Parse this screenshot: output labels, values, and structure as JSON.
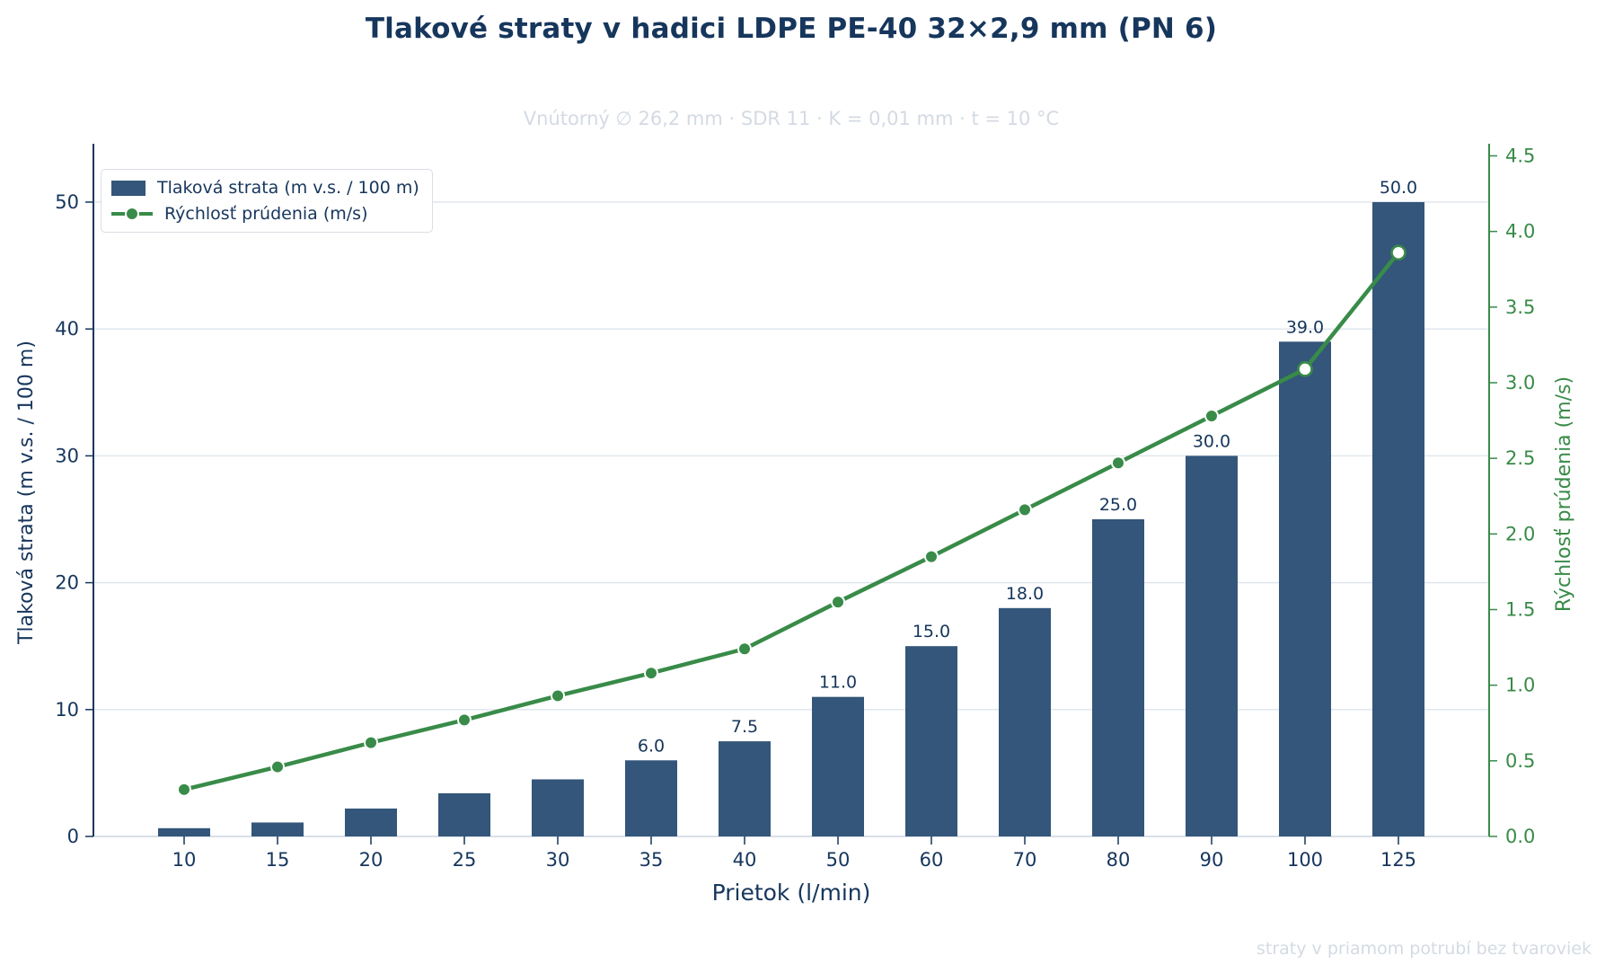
{
  "title": "Tlakové straty v hadici LDPE PE-40 32×2,9 mm (PN 6)",
  "subtitle": "Vnútorný ∅ 26,2 mm · SDR 11 · K = 0,01 mm · t = 10 °C",
  "footer_note": "straty v priamom potrubí bez tvaroviek",
  "colors": {
    "title_navy": "#16365C",
    "bar_fill": "#33567A",
    "line_green": "#388B48",
    "axis_left": "#16365C",
    "axis_right": "#388B48",
    "grid": "#DEE4EC",
    "bottom_spine": "#D8DFE8",
    "muted_gray": "#D4DAE3",
    "marker_edge_white": "#FFFFFF"
  },
  "legend": {
    "items": [
      {
        "label": "Tlaková strata (m v.s. / 100 m)",
        "swatch": "bar"
      },
      {
        "label": "Rýchlosť prúdenia (m/s)",
        "swatch": "line"
      }
    ]
  },
  "chart_data": {
    "type": "bar",
    "subtype": "dual-axis bar + line",
    "categories": [
      "10",
      "15",
      "20",
      "25",
      "30",
      "35",
      "40",
      "50",
      "60",
      "70",
      "80",
      "90",
      "100",
      "125"
    ],
    "series": [
      {
        "name": "Tlaková strata (m v.s. / 100 m)",
        "type": "bar",
        "axis": "left",
        "values": [
          0.65,
          1.1,
          2.2,
          3.4,
          4.5,
          6.0,
          7.5,
          11.0,
          15.0,
          18.0,
          25.0,
          30.0,
          39.0,
          50.0
        ],
        "value_labels": [
          "",
          "",
          "",
          "",
          "",
          "6.0",
          "7.5",
          "11.0",
          "15.0",
          "18.0",
          "25.0",
          "30.0",
          "39.0",
          "50.0"
        ]
      },
      {
        "name": "Rýchlosť prúdenia (m/s)",
        "type": "line",
        "axis": "right",
        "values": [
          0.31,
          0.46,
          0.62,
          0.77,
          0.93,
          1.08,
          1.24,
          1.55,
          1.85,
          2.16,
          2.47,
          2.78,
          3.09,
          3.86
        ],
        "open_marker_indices": [
          12,
          13
        ]
      }
    ],
    "xlabel": "Prietok (l/min)",
    "ylabel_left": "Tlaková strata (m v.s. / 100 m)",
    "ylabel_right": "Rýchlosť prúdenia (m/s)",
    "yticks_left": [
      "0",
      "10",
      "20",
      "30",
      "40",
      "50"
    ],
    "yticks_right": [
      "0.0",
      "0.5",
      "1.0",
      "1.5",
      "2.0",
      "2.5",
      "3.0",
      "3.5",
      "4.0",
      "4.5"
    ],
    "ylim_left": [
      0,
      54.6
    ],
    "ylim_right": [
      0,
      4.58
    ],
    "grid": "horizontal gridlines at left-axis ticks",
    "legend_position": "upper left"
  }
}
